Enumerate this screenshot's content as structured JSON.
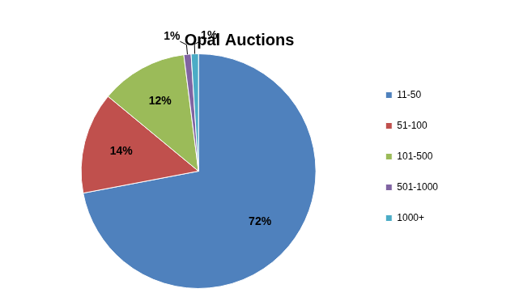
{
  "chart_data": {
    "type": "pie",
    "title": "Opal Auctions",
    "categories": [
      "11-50",
      "51-100",
      "101-500",
      "501-1000",
      "1000+"
    ],
    "values": [
      72,
      14,
      12,
      1,
      1
    ],
    "value_labels": [
      "72%",
      "14%",
      "12%",
      "1%",
      "1%"
    ],
    "colors": [
      "#4f81bd",
      "#c0504d",
      "#9bbb59",
      "#8064a2",
      "#4bacc6"
    ],
    "legend": "right",
    "data_labels": true
  }
}
